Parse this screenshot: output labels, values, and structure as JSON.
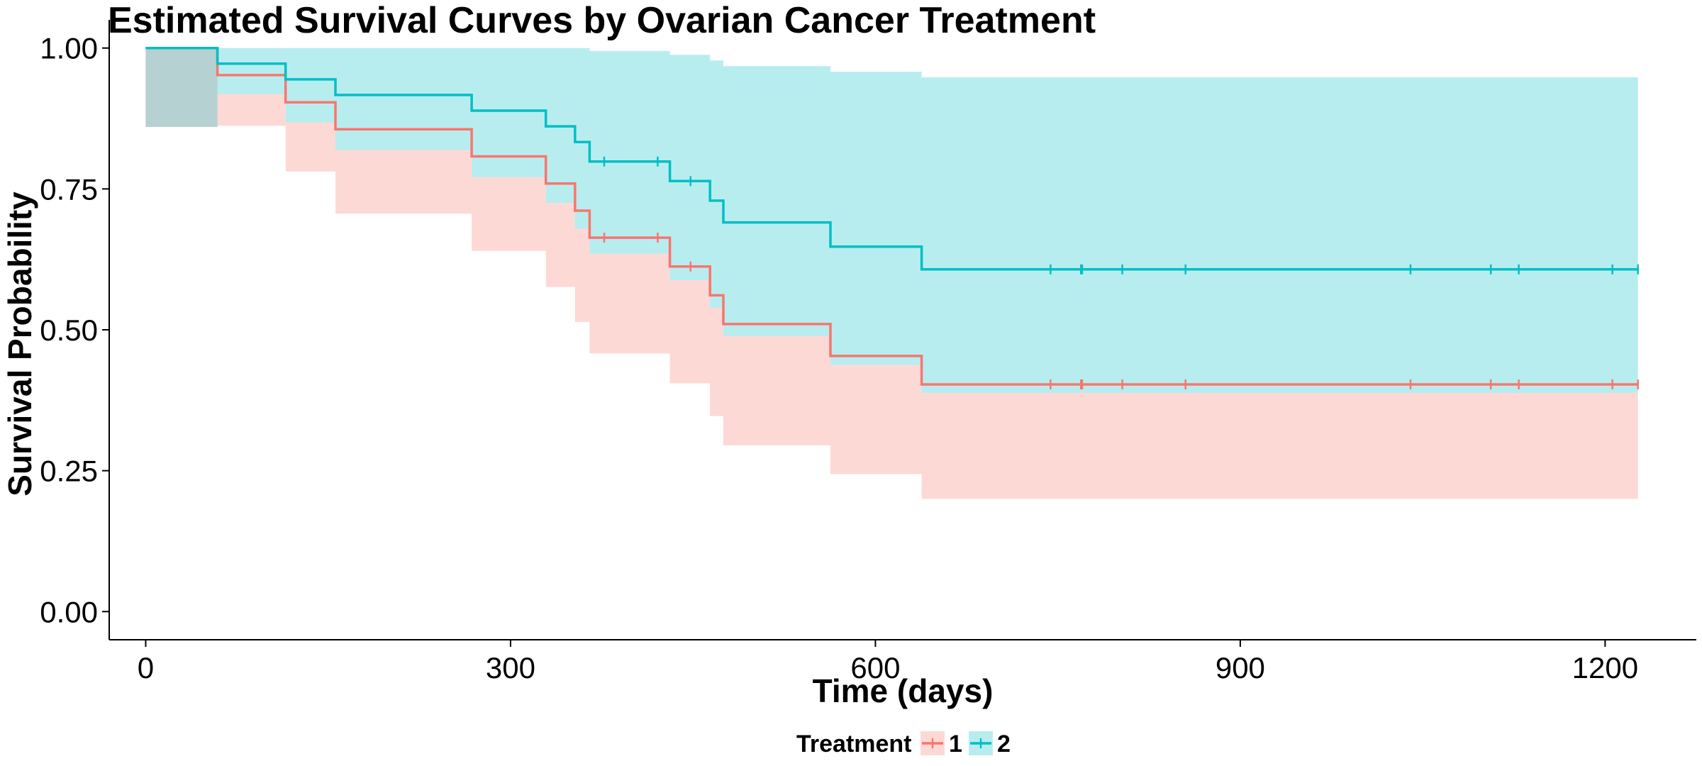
{
  "chart_data": {
    "type": "line",
    "title": "Estimated Survival Curves by Ovarian Cancer Treatment",
    "xlabel": "Time (days)",
    "ylabel": "Survival Probability",
    "xlim": [
      -30,
      1275
    ],
    "ylim": [
      -0.05,
      1.05
    ],
    "x_ticks": [
      0,
      300,
      600,
      900,
      1200
    ],
    "x_tick_labels": [
      "0",
      "300",
      "600",
      "900",
      "1200"
    ],
    "y_ticks": [
      0,
      0.25,
      0.5,
      0.75,
      1.0
    ],
    "y_tick_labels": [
      "0.00",
      "0.25",
      "0.50",
      "0.75",
      "1.00"
    ],
    "grid": false,
    "legend": {
      "title": "Treatment",
      "placement": "bottom"
    },
    "series": [
      {
        "name": "1",
        "color": "#f8766d",
        "fill_color": "#f8766d",
        "x": [
          0,
          59,
          115,
          156,
          268,
          329,
          353,
          365,
          431,
          464,
          475,
          563,
          638,
          1227
        ],
        "y": [
          1.0,
          0.9519,
          0.9038,
          0.8558,
          0.8077,
          0.7596,
          0.7115,
          0.6635,
          0.6123,
          0.5612,
          0.5102,
          0.4535,
          0.4031,
          0.4031
        ],
        "lower": [
          0.86,
          0.862,
          0.781,
          0.706,
          0.64,
          0.576,
          0.514,
          0.458,
          0.405,
          0.347,
          0.295,
          0.244,
          0.2,
          0.2
        ],
        "upper": [
          1.0,
          0.918,
          0.868,
          0.819,
          0.771,
          0.725,
          0.679,
          0.635,
          0.588,
          0.539,
          0.489,
          0.438,
          0.388,
          0.388
        ],
        "censored_x": [
          377,
          421,
          448,
          744,
          769,
          770,
          803,
          855,
          1040,
          1106,
          1129,
          1206,
          1227
        ],
        "censored_y": [
          0.6635,
          0.6635,
          0.6123,
          0.4031,
          0.4031,
          0.4031,
          0.4031,
          0.4031,
          0.4031,
          0.4031,
          0.4031,
          0.4031,
          0.4031
        ]
      },
      {
        "name": "2",
        "color": "#00bfc4",
        "fill_color": "#00bfc4",
        "x": [
          0,
          59,
          115,
          156,
          268,
          329,
          353,
          365,
          431,
          464,
          475,
          563,
          638,
          1227
        ],
        "y": [
          1.0,
          0.9722,
          0.9444,
          0.9167,
          0.8889,
          0.8611,
          0.8333,
          0.7986,
          0.7639,
          0.7292,
          0.6906,
          0.6475,
          0.6072,
          0.6072
        ],
        "lower": [
          0.86,
          0.918,
          0.868,
          0.819,
          0.771,
          0.725,
          0.679,
          0.635,
          0.588,
          0.539,
          0.489,
          0.438,
          0.388,
          0.388
        ],
        "upper": [
          1.0,
          1.0,
          1.0,
          1.0,
          1.0,
          1.0,
          1.0,
          0.995,
          0.988,
          0.978,
          0.968,
          0.958,
          0.948,
          0.948
        ],
        "censored_x": [
          377,
          421,
          448,
          744,
          769,
          770,
          803,
          855,
          1040,
          1106,
          1129,
          1206,
          1227
        ],
        "censored_y": [
          0.7986,
          0.7986,
          0.7639,
          0.6072,
          0.6072,
          0.6072,
          0.6072,
          0.6072,
          0.6072,
          0.6072,
          0.6072,
          0.6072,
          0.6072
        ]
      }
    ]
  }
}
